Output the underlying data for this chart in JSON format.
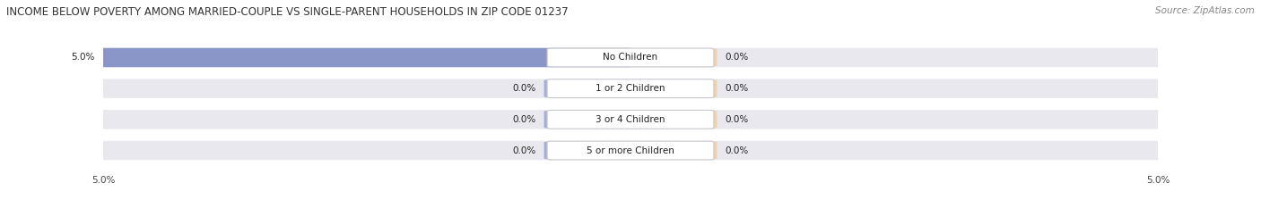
{
  "title": "INCOME BELOW POVERTY AMONG MARRIED-COUPLE VS SINGLE-PARENT HOUSEHOLDS IN ZIP CODE 01237",
  "source": "Source: ZipAtlas.com",
  "categories": [
    "No Children",
    "1 or 2 Children",
    "3 or 4 Children",
    "5 or more Children"
  ],
  "married_values": [
    5.0,
    0.0,
    0.0,
    0.0
  ],
  "single_values": [
    0.0,
    0.0,
    0.0,
    0.0
  ],
  "married_color": "#8B96C8",
  "single_color": "#F5C98A",
  "xlim": 5.0,
  "bg_color": "#ffffff",
  "row_bg_color": "#e8e8ee",
  "title_fontsize": 8.5,
  "source_fontsize": 7.5,
  "label_fontsize": 7.5,
  "tick_fontsize": 7.5,
  "category_fontsize": 7.5,
  "small_bar_display": 0.5
}
